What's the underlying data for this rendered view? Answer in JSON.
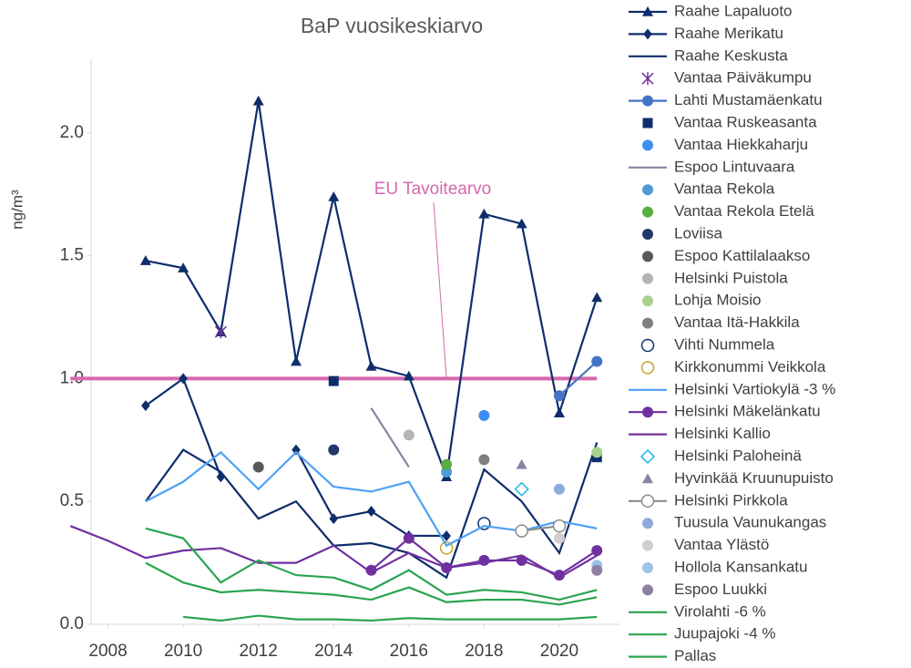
{
  "chart_data": {
    "type": "line",
    "title": "BaP vuosikeskiarvo",
    "y_label": "ng/m³",
    "x": [
      2007,
      2008,
      2009,
      2010,
      2011,
      2012,
      2013,
      2014,
      2015,
      2016,
      2017,
      2018,
      2019,
      2020,
      2021
    ],
    "xlim": [
      2007.55,
      2021.6
    ],
    "xticks": [
      2008,
      2010,
      2012,
      2014,
      2016,
      2018,
      2020
    ],
    "ylim": [
      0,
      2.3
    ],
    "yticks": [
      {
        "value": 0,
        "label": "0.0"
      },
      0.5,
      {
        "value": 1,
        "label": "1.0"
      },
      1.5,
      {
        "value": 2,
        "label": "2.0"
      }
    ],
    "target": {
      "label": "EU Tavoitearvo",
      "value": 1,
      "color": "#d667ad",
      "xrange": [
        2007,
        2021
      ],
      "label_x": 2017
    },
    "legend": "right",
    "series": [
      {
        "name": "Raahe Lapaluoto",
        "color": "#0e2d6b",
        "marker": "triangle",
        "line": true,
        "values": [
          null,
          null,
          1.48,
          1.45,
          1.19,
          2.13,
          1.07,
          1.74,
          1.05,
          1.01,
          0.6,
          1.67,
          1.63,
          0.86,
          1.33
        ]
      },
      {
        "name": "Raahe Merikatu",
        "color": "#0e2d6b",
        "marker": "diamond",
        "line": true,
        "values": [
          null,
          null,
          0.89,
          1.0,
          0.6,
          null,
          0.71,
          0.43,
          0.46,
          0.36,
          0.36,
          null,
          null,
          null,
          null
        ]
      },
      {
        "name": "Raahe Keskusta",
        "color": "#0e2d6b",
        "marker": "none",
        "line": true,
        "values": [
          null,
          null,
          0.5,
          0.71,
          0.62,
          0.43,
          0.5,
          0.32,
          0.33,
          0.29,
          0.19,
          0.63,
          0.5,
          0.29,
          0.74
        ]
      },
      {
        "name": "Vantaa Päiväkumpu",
        "color": "#7030a0",
        "marker": "asterisk",
        "line": false,
        "values": [
          null,
          null,
          null,
          null,
          1.19,
          null,
          null,
          null,
          null,
          null,
          null,
          null,
          null,
          null,
          null
        ]
      },
      {
        "name": "Lahti Mustamäenkatu",
        "color": "#4472c4",
        "marker": "circle",
        "line": true,
        "values": [
          null,
          null,
          null,
          null,
          null,
          null,
          null,
          null,
          null,
          null,
          null,
          null,
          null,
          0.93,
          1.07
        ]
      },
      {
        "name": "Vantaa Ruskeasanta",
        "color": "#0e2d6b",
        "marker": "square",
        "line": false,
        "values": [
          null,
          null,
          null,
          null,
          null,
          null,
          null,
          0.99,
          null,
          null,
          null,
          null,
          null,
          null,
          0.68
        ]
      },
      {
        "name": "Vantaa Hiekkaharju",
        "color": "#3d8ef0",
        "marker": "circle",
        "line": false,
        "values": [
          null,
          null,
          null,
          null,
          null,
          null,
          null,
          null,
          null,
          null,
          null,
          0.85,
          null,
          null,
          null
        ]
      },
      {
        "name": "Espoo Lintuvaara",
        "color": "#8585a3",
        "marker": "none",
        "line": true,
        "values": [
          null,
          null,
          null,
          null,
          null,
          null,
          null,
          null,
          0.88,
          0.64,
          null,
          null,
          null,
          null,
          null
        ]
      },
      {
        "name": "Vantaa Rekola",
        "color": "#4d9bd9",
        "marker": "circle",
        "line": false,
        "values": [
          null,
          null,
          null,
          null,
          null,
          null,
          null,
          null,
          null,
          null,
          0.62,
          null,
          null,
          null,
          null
        ]
      },
      {
        "name": "Vantaa Rekola Etelä",
        "color": "#5aad3f",
        "marker": "circle",
        "line": false,
        "values": [
          null,
          null,
          null,
          null,
          null,
          null,
          null,
          null,
          null,
          null,
          0.65,
          null,
          null,
          null,
          null
        ]
      },
      {
        "name": "Loviisa",
        "color": "#22386b",
        "marker": "circle",
        "line": false,
        "values": [
          null,
          null,
          null,
          null,
          null,
          null,
          null,
          0.71,
          null,
          null,
          null,
          null,
          null,
          null,
          null
        ]
      },
      {
        "name": "Espoo Kattilalaakso",
        "color": "#595959",
        "marker": "circle",
        "line": false,
        "values": [
          null,
          null,
          null,
          null,
          null,
          0.64,
          null,
          null,
          null,
          null,
          null,
          null,
          null,
          null,
          null
        ]
      },
      {
        "name": "Helsinki Puistola",
        "color": "#b5b5b5",
        "marker": "circle",
        "line": false,
        "values": [
          null,
          null,
          null,
          null,
          null,
          null,
          null,
          null,
          null,
          0.77,
          null,
          null,
          null,
          null,
          null
        ]
      },
      {
        "name": "Lohja Moisio",
        "color": "#a9d18e",
        "marker": "circle",
        "line": false,
        "values": [
          null,
          null,
          null,
          null,
          null,
          null,
          null,
          null,
          null,
          null,
          null,
          null,
          null,
          null,
          0.7
        ]
      },
      {
        "name": "Vantaa Itä-Hakkila",
        "color": "#7f7f7f",
        "marker": "circle",
        "line": false,
        "values": [
          null,
          null,
          null,
          null,
          null,
          null,
          null,
          null,
          null,
          null,
          null,
          0.67,
          null,
          null,
          null
        ]
      },
      {
        "name": "Vihti Nummela",
        "color": "#0e2d6b",
        "marker": "open-circle",
        "line": false,
        "values": [
          null,
          null,
          null,
          null,
          null,
          null,
          null,
          null,
          null,
          null,
          null,
          0.41,
          null,
          null,
          null
        ]
      },
      {
        "name": "Kirkkonummi Veikkola",
        "color": "#c9a227",
        "marker": "open-circle",
        "line": false,
        "values": [
          null,
          null,
          null,
          null,
          null,
          null,
          null,
          null,
          null,
          null,
          0.31,
          null,
          null,
          null,
          null
        ]
      },
      {
        "name": "Helsinki Vartiokylä -3 %",
        "color": "#4ea1f5",
        "marker": "none",
        "line": true,
        "values": [
          null,
          null,
          0.5,
          0.58,
          0.7,
          0.55,
          0.7,
          0.56,
          0.54,
          0.58,
          0.32,
          0.4,
          0.38,
          0.42,
          0.39
        ]
      },
      {
        "name": "Helsinki Mäkelänkatu",
        "color": "#7030a0",
        "marker": "circle",
        "line": true,
        "values": [
          null,
          null,
          null,
          null,
          null,
          null,
          null,
          null,
          0.22,
          0.35,
          0.23,
          0.26,
          0.26,
          0.2,
          0.3
        ]
      },
      {
        "name": "Helsinki Kallio",
        "color": "#7030a0",
        "marker": "none",
        "line": true,
        "values": [
          0.4,
          0.34,
          0.27,
          0.3,
          0.31,
          0.25,
          0.25,
          0.32,
          0.21,
          0.29,
          0.23,
          0.25,
          0.28,
          0.19,
          0.28
        ]
      },
      {
        "name": "Helsinki Paloheinä",
        "color": "#16b6e8",
        "marker": "open-diamond",
        "line": false,
        "values": [
          null,
          null,
          null,
          null,
          null,
          null,
          null,
          null,
          null,
          null,
          null,
          null,
          0.55,
          null,
          null
        ]
      },
      {
        "name": "Hyvinkää Kruunupuisto",
        "color": "#8585a3",
        "marker": "triangle",
        "line": false,
        "values": [
          null,
          null,
          null,
          null,
          null,
          null,
          null,
          null,
          null,
          null,
          null,
          null,
          0.65,
          null,
          null
        ]
      },
      {
        "name": "Helsinki Pirkkola",
        "color": "#8c8c8c",
        "marker": "open-circle",
        "line": true,
        "values": [
          null,
          null,
          null,
          null,
          null,
          null,
          null,
          null,
          null,
          null,
          null,
          null,
          0.38,
          0.4,
          null
        ]
      },
      {
        "name": "Tuusula Vaunukangas",
        "color": "#8faadc",
        "marker": "circle",
        "line": false,
        "values": [
          null,
          null,
          null,
          null,
          null,
          null,
          null,
          null,
          null,
          null,
          null,
          null,
          null,
          0.55,
          null
        ]
      },
      {
        "name": "Vantaa Ylästö",
        "color": "#d0d0d0",
        "marker": "circle",
        "line": false,
        "values": [
          null,
          null,
          null,
          null,
          null,
          null,
          null,
          null,
          null,
          null,
          null,
          null,
          null,
          0.35,
          null
        ]
      },
      {
        "name": "Hollola Kansankatu",
        "color": "#9dc3e6",
        "marker": "circle",
        "line": false,
        "values": [
          null,
          null,
          null,
          null,
          null,
          null,
          null,
          null,
          null,
          null,
          null,
          null,
          null,
          null,
          0.24
        ]
      },
      {
        "name": "Espoo Luukki",
        "color": "#8e7fa0",
        "marker": "circle",
        "line": false,
        "values": [
          null,
          null,
          null,
          null,
          null,
          null,
          null,
          null,
          null,
          null,
          null,
          null,
          null,
          null,
          0.22
        ]
      },
      {
        "name": "Virolahti -6 %",
        "color": "#2aa44f",
        "marker": "none",
        "line": true,
        "values": [
          null,
          null,
          0.39,
          0.35,
          0.17,
          0.26,
          0.2,
          0.19,
          0.14,
          0.22,
          0.12,
          0.14,
          0.13,
          0.1,
          0.14
        ]
      },
      {
        "name": "Juupajoki -4 %",
        "color": "#2aa44f",
        "marker": "none",
        "line": true,
        "values": [
          null,
          null,
          0.25,
          0.17,
          0.13,
          0.14,
          0.13,
          0.12,
          0.1,
          0.15,
          0.09,
          0.1,
          0.1,
          0.08,
          0.11
        ]
      },
      {
        "name": "Pallas",
        "color": "#2aa44f",
        "marker": "none",
        "line": true,
        "values": [
          null,
          null,
          null,
          0.03,
          0.015,
          0.035,
          0.02,
          0.02,
          0.015,
          0.025,
          0.02,
          0.02,
          0.02,
          0.02,
          0.03
        ]
      }
    ]
  }
}
